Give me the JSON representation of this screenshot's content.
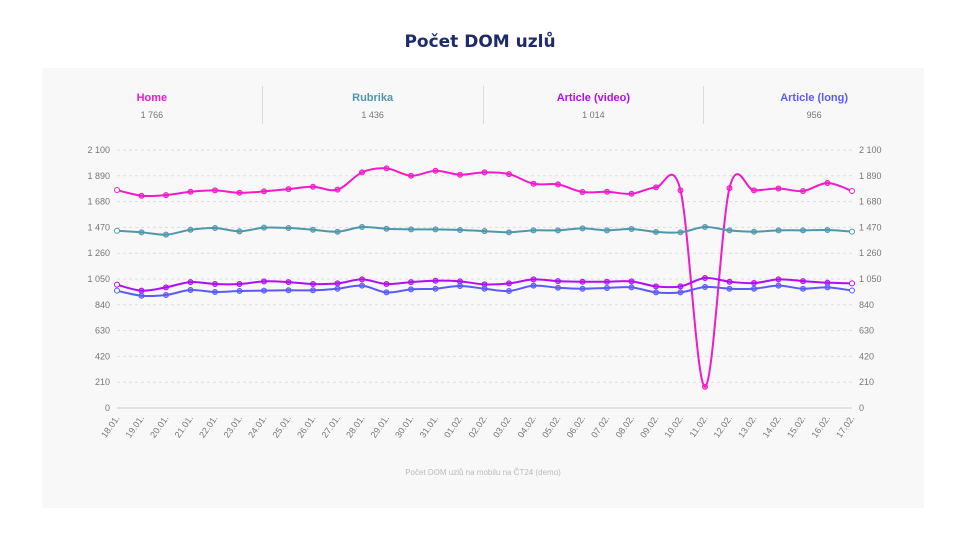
{
  "title": "Počet DOM uzlů",
  "caption": "Počet DOM uzlů na mobilu na ČT24 (demo)",
  "chart_data": {
    "type": "line",
    "title": "Počet DOM uzlů",
    "xlabel": "",
    "ylabel": "",
    "ylim": [
      0,
      2100
    ],
    "yticks": [
      0,
      210,
      420,
      630,
      840,
      1050,
      1260,
      1470,
      1680,
      1890,
      2100
    ],
    "ytick_labels": [
      "0",
      "210",
      "420",
      "630",
      "840",
      "1 050",
      "1 260",
      "1 470",
      "1 680",
      "1 890",
      "2 100"
    ],
    "grid": true,
    "x": [
      "18.01.",
      "19.01.",
      "20.01.",
      "21.01.",
      "22.01.",
      "23.01.",
      "24.01.",
      "25.01.",
      "26.01.",
      "27.01.",
      "28.01.",
      "29.01.",
      "30.01.",
      "31.01.",
      "01.02.",
      "02.02.",
      "03.02.",
      "04.02.",
      "05.02.",
      "06.02.",
      "07.02.",
      "08.02.",
      "09.02.",
      "10.02.",
      "11.02.",
      "12.02.",
      "13.02.",
      "14.02.",
      "15.02.",
      "16.02.",
      "17.02."
    ],
    "series": [
      {
        "name": "Home",
        "color": "#f01bc9",
        "latest": "1 766",
        "values": [
          1774,
          1728,
          1733,
          1760,
          1771,
          1752,
          1763,
          1782,
          1801,
          1777,
          1918,
          1950,
          1890,
          1931,
          1899,
          1918,
          1904,
          1825,
          1820,
          1758,
          1760,
          1744,
          1796,
          1771,
          173,
          1790,
          1771,
          1787,
          1766,
          1831,
          1766
        ]
      },
      {
        "name": "Rubrika",
        "color": "#4f97ab",
        "latest": "1 436",
        "values": [
          1443,
          1430,
          1411,
          1451,
          1465,
          1438,
          1468,
          1465,
          1451,
          1435,
          1473,
          1459,
          1454,
          1454,
          1449,
          1440,
          1430,
          1446,
          1446,
          1462,
          1446,
          1457,
          1433,
          1430,
          1473,
          1446,
          1435,
          1446,
          1446,
          1449,
          1436
        ]
      },
      {
        "name": "Article (video)",
        "color": "#b10ff0",
        "latest": "1 014",
        "values": [
          1004,
          955,
          982,
          1025,
          1009,
          1009,
          1031,
          1025,
          1009,
          1014,
          1047,
          1009,
          1025,
          1036,
          1031,
          1006,
          1014,
          1047,
          1033,
          1028,
          1028,
          1031,
          990,
          990,
          1058,
          1028,
          1017,
          1047,
          1033,
          1020,
          1014
        ]
      },
      {
        "name": "Article (long)",
        "color": "#5a5cf5",
        "latest": "956",
        "values": [
          955,
          914,
          920,
          960,
          944,
          952,
          955,
          958,
          958,
          971,
          996,
          941,
          966,
          971,
          993,
          971,
          952,
          996,
          979,
          971,
          977,
          982,
          941,
          941,
          985,
          971,
          971,
          996,
          971,
          982,
          956
        ]
      }
    ]
  }
}
